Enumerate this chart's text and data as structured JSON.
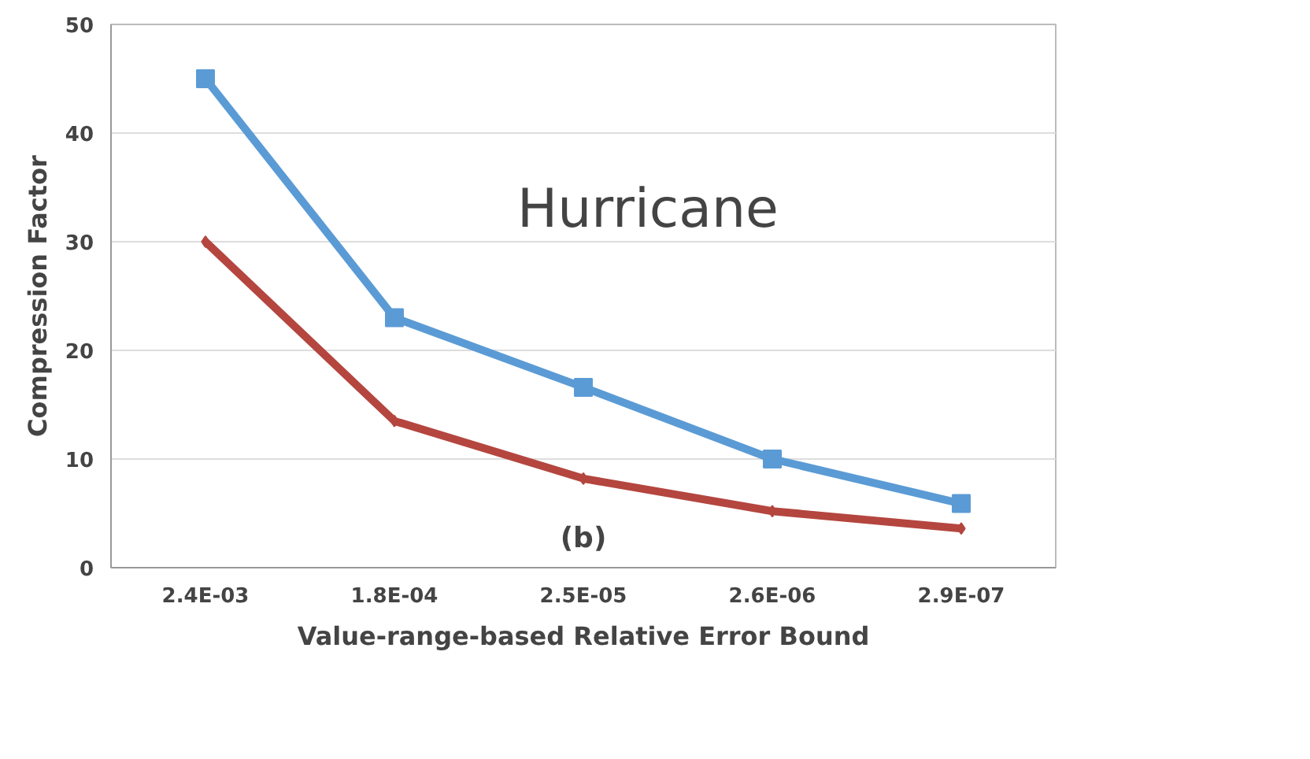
{
  "chart_data": {
    "type": "line",
    "xlabel": "Value-range-based Relative Error Bound",
    "ylabel": "Compression Factor",
    "categories": [
      "2.4E-03",
      "1.8E-04",
      "2.5E-05",
      "2.6E-06",
      "2.9E-07"
    ],
    "series": [
      {
        "color": "#5b9bd5",
        "marker": "square",
        "values": [
          45,
          23,
          16.6,
          10,
          5.9
        ]
      },
      {
        "color": "#b4463f",
        "marker": "diamond",
        "values": [
          30,
          13.5,
          8.2,
          5.2,
          3.6
        ]
      }
    ],
    "ylim": [
      0,
      50
    ],
    "yticks": [
      0,
      10,
      20,
      30,
      40,
      50
    ],
    "grid": "y",
    "annotations": [
      {
        "text": "Hurricane"
      },
      {
        "text": "(b)"
      }
    ]
  }
}
